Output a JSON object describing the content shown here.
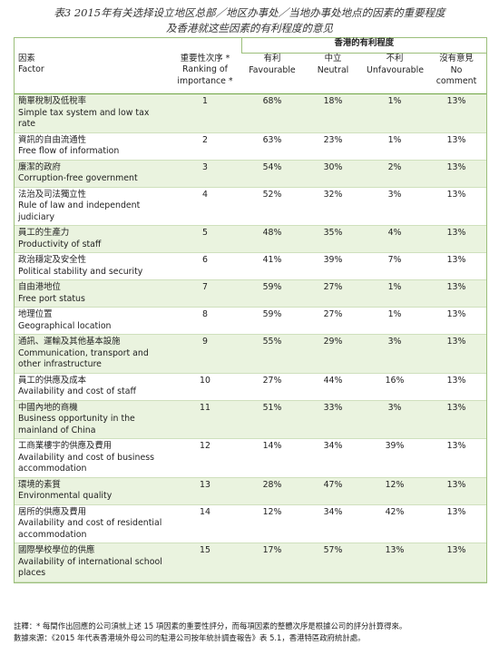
{
  "title": {
    "line1": "表3 2015年有关选择设立地区总部／地区办事处／当地办事处地点的因素的重要程度",
    "line2": "及香港就这些因素的有利程度的意见"
  },
  "table": {
    "group_header": "香港的有利程度",
    "headers": {
      "factor_zh": "因素",
      "factor_en": "Factor",
      "rank_zh": "重要性次序 *",
      "rank_en": "Ranking of importance *",
      "fav_zh": "有利",
      "fav_en": "Favourable",
      "neu_zh": "中立",
      "neu_en": "Neutral",
      "unf_zh": "不利",
      "unf_en": "Unfavourable",
      "noc_zh": "沒有意見",
      "noc_en": "No comment"
    },
    "rows": [
      {
        "zh": "簡單稅制及低稅率",
        "en": "Simple tax system and low tax rate",
        "rank": "1",
        "fav": "68%",
        "neu": "18%",
        "unf": "1%",
        "noc": "13%"
      },
      {
        "zh": "資訊的自由流通性",
        "en": "Free flow of information",
        "rank": "2",
        "fav": "63%",
        "neu": "23%",
        "unf": "1%",
        "noc": "13%"
      },
      {
        "zh": "廉潔的政府",
        "en": "Corruption-free government",
        "rank": "3",
        "fav": "54%",
        "neu": "30%",
        "unf": "2%",
        "noc": "13%"
      },
      {
        "zh": "法治及司法獨立性",
        "en": "Rule of law and independent judiciary",
        "rank": "4",
        "fav": "52%",
        "neu": "32%",
        "unf": "3%",
        "noc": "13%"
      },
      {
        "zh": "員工的生產力",
        "en": "Productivity of staff",
        "rank": "5",
        "fav": "48%",
        "neu": "35%",
        "unf": "4%",
        "noc": "13%"
      },
      {
        "zh": "政治穩定及安全性",
        "en": "Political stability and security",
        "rank": "6",
        "fav": "41%",
        "neu": "39%",
        "unf": "7%",
        "noc": "13%"
      },
      {
        "zh": "自由港地位",
        "en": "Free port status",
        "rank": "7",
        "fav": "59%",
        "neu": "27%",
        "unf": "1%",
        "noc": "13%"
      },
      {
        "zh": "地理位置",
        "en": "Geographical location",
        "rank": "8",
        "fav": "59%",
        "neu": "27%",
        "unf": "1%",
        "noc": "13%"
      },
      {
        "zh": "通訊、運輸及其他基本設施",
        "en": "Communication, transport and other infrastructure",
        "rank": "9",
        "fav": "55%",
        "neu": "29%",
        "unf": "3%",
        "noc": "13%"
      },
      {
        "zh": "員工的供應及成本",
        "en": "Availability and cost of staff",
        "rank": "10",
        "fav": "27%",
        "neu": "44%",
        "unf": "16%",
        "noc": "13%"
      },
      {
        "zh": "中國內地的商機",
        "en": "Business opportunity in the mainland of China",
        "rank": "11",
        "fav": "51%",
        "neu": "33%",
        "unf": "3%",
        "noc": "13%"
      },
      {
        "zh": "工商業樓宇的供應及費用",
        "en": "Availability and cost of business accommodation",
        "rank": "12",
        "fav": "14%",
        "neu": "34%",
        "unf": "39%",
        "noc": "13%"
      },
      {
        "zh": "環境的素質",
        "en": "Environmental quality",
        "rank": "13",
        "fav": "28%",
        "neu": "47%",
        "unf": "12%",
        "noc": "13%"
      },
      {
        "zh": "居所的供應及費用",
        "en": "Availability and cost of residential accommodation",
        "rank": "14",
        "fav": "12%",
        "neu": "34%",
        "unf": "42%",
        "noc": "13%"
      },
      {
        "zh": "國際學校學位的供應",
        "en": "Availability of international school places",
        "rank": "15",
        "fav": "17%",
        "neu": "57%",
        "unf": "13%",
        "noc": "13%"
      }
    ]
  },
  "notes": {
    "note": "註釋：* 每間作出回應的公司須就上述 15 項因素的重要性評分，而每項因素的整體次序是根據公司的評分計算得來。",
    "source": "數據來源：《2015 年代表香港境外母公司的駐港公司按年統計調查報告》表 5.1，香港特區政府統計處。"
  }
}
